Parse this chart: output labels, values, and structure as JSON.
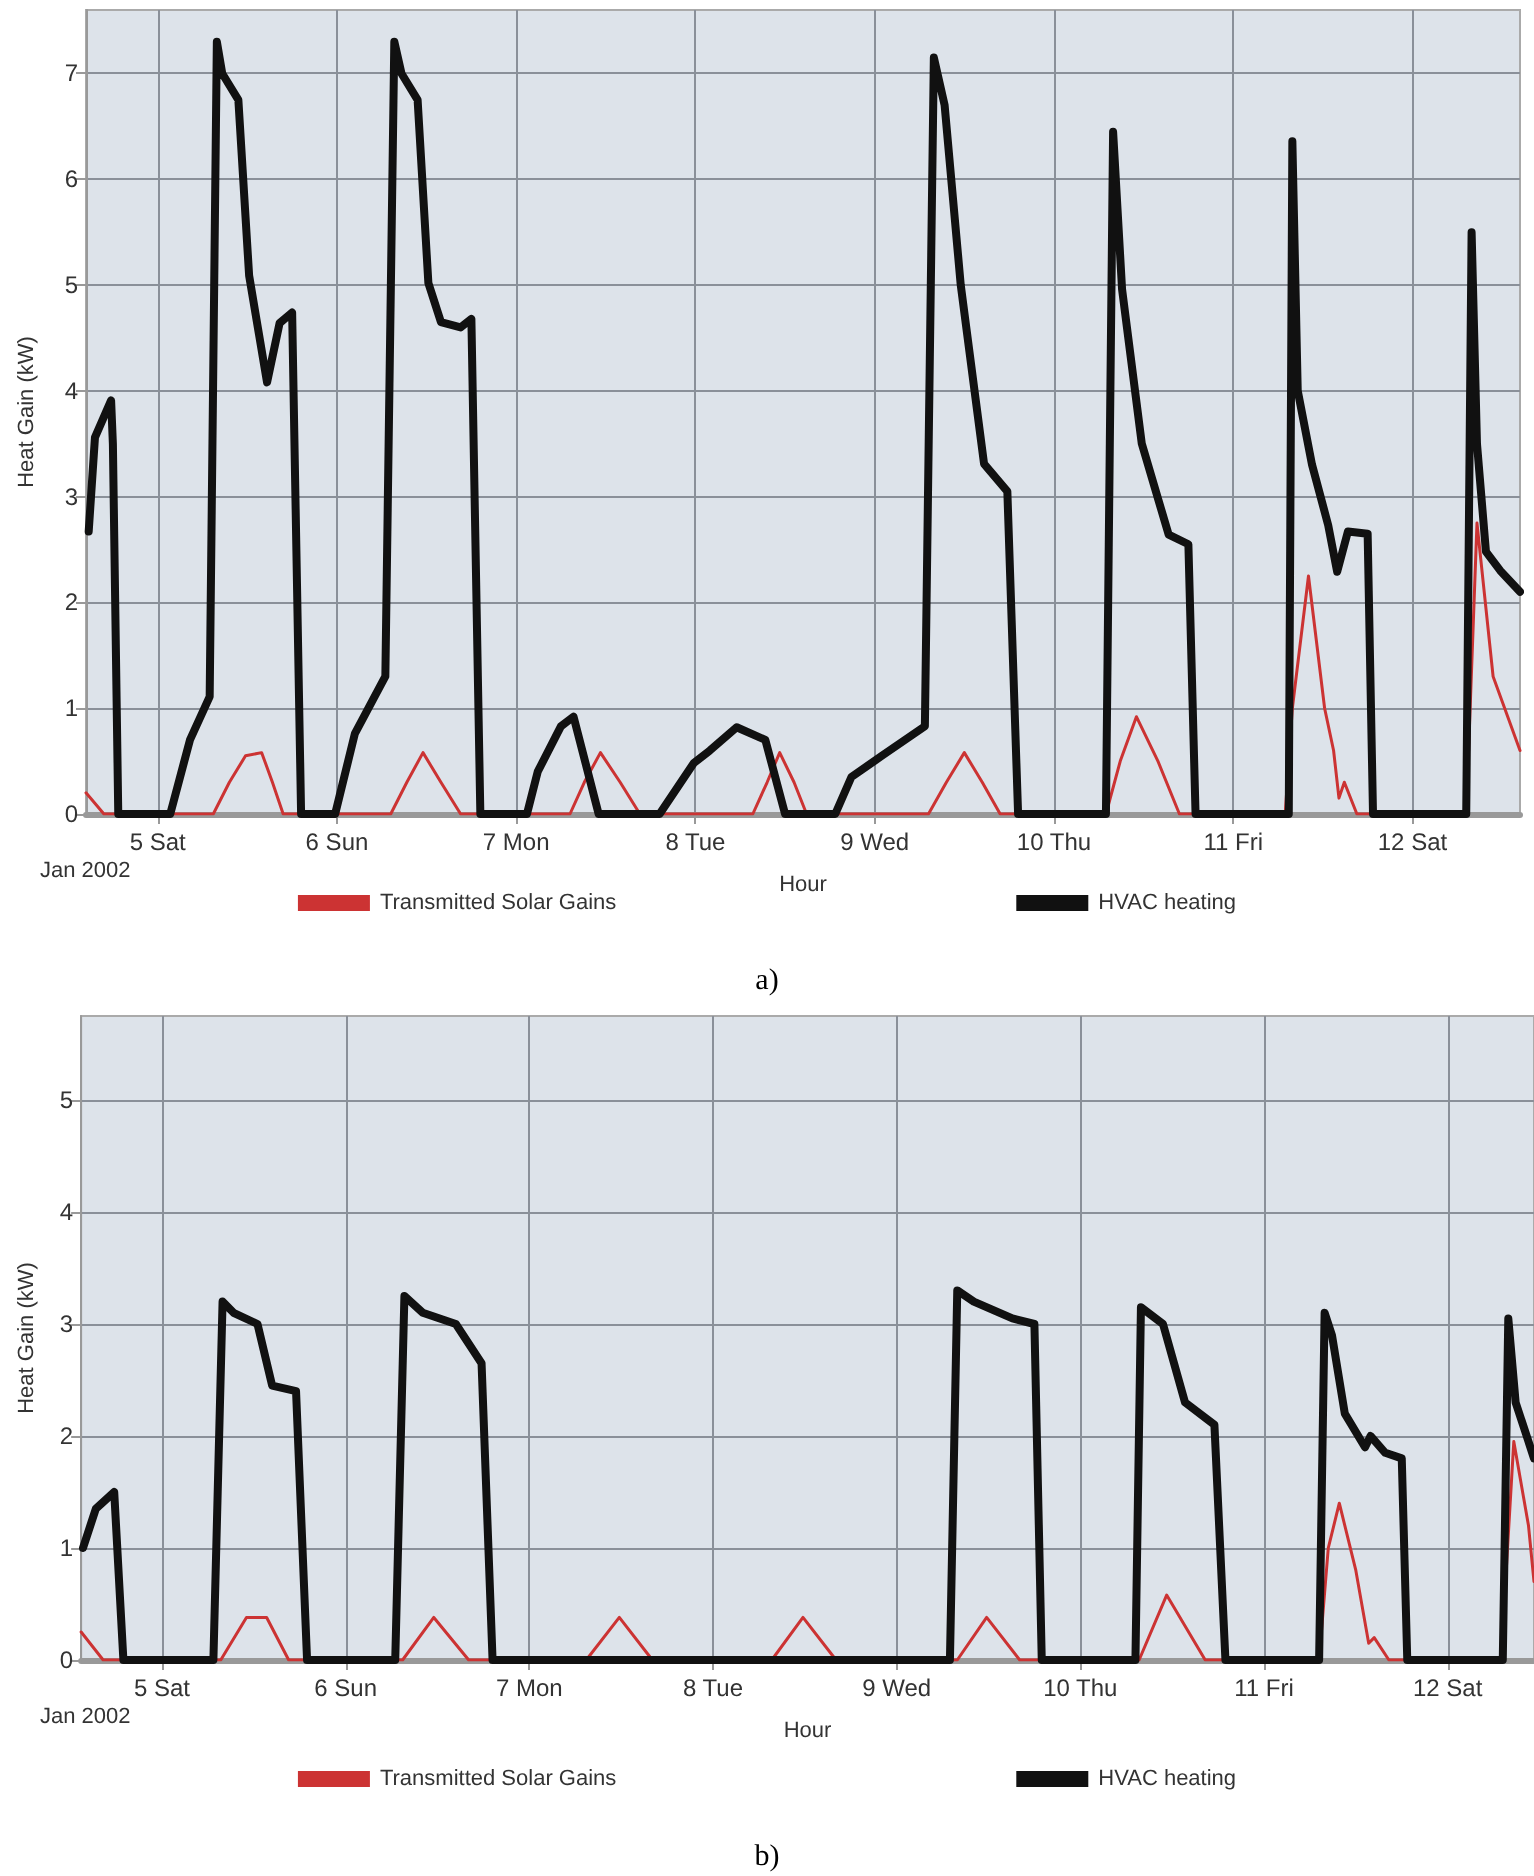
{
  "chart_data": [
    {
      "type": "line",
      "xlabel": "Hour",
      "ylabel": "Heat Gain (kW)",
      "annotations": [
        "Jan 2002",
        "a)"
      ],
      "xlim": [
        4.6,
        12.6
      ],
      "ylim": [
        0,
        7.6
      ],
      "yticks": [
        0,
        1,
        2,
        3,
        4,
        5,
        6,
        7
      ],
      "xticks": [
        {
          "value": 5,
          "label": "5 Sat"
        },
        {
          "value": 6,
          "label": "6 Sun"
        },
        {
          "value": 7,
          "label": "7 Mon"
        },
        {
          "value": 8,
          "label": "8 Tue"
        },
        {
          "value": 9,
          "label": "9 Wed"
        },
        {
          "value": 10,
          "label": "10 Thu"
        },
        {
          "value": 11,
          "label": "11 Fri"
        },
        {
          "value": 12,
          "label": "12 Sat"
        }
      ],
      "grid": true,
      "legend": "bottom",
      "marker": "none",
      "line_style": "solid",
      "series": [
        {
          "name": "Transmitted Solar Gains",
          "color": "#cc3333",
          "x": [
            4.6,
            4.7,
            5.31,
            5.4,
            5.49,
            5.58,
            5.64,
            5.7,
            6.3,
            6.39,
            6.48,
            6.58,
            6.69,
            7.3,
            7.38,
            7.47,
            7.58,
            7.69,
            8.32,
            8.4,
            8.47,
            8.55,
            8.62,
            9.3,
            9.4,
            9.5,
            9.6,
            9.7,
            10.29,
            10.37,
            10.46,
            10.58,
            10.7,
            11.29,
            11.33,
            11.42,
            11.51,
            11.56,
            11.59,
            11.62,
            11.69,
            12.3,
            12.36,
            12.45,
            12.6
          ],
          "values": [
            0.2,
            0,
            0,
            0.3,
            0.55,
            0.58,
            0.3,
            0,
            0,
            0.3,
            0.58,
            0.3,
            0,
            0,
            0.3,
            0.58,
            0.3,
            0,
            0,
            0.3,
            0.58,
            0.3,
            0,
            0,
            0.3,
            0.58,
            0.3,
            0,
            0,
            0.5,
            0.92,
            0.5,
            0,
            0,
            1.0,
            2.25,
            1.0,
            0.6,
            0.15,
            0.3,
            0,
            0,
            2.75,
            1.3,
            0.6
          ]
        },
        {
          "name": "HVAC heating",
          "color": "#111111",
          "x": [
            4.615,
            4.65,
            4.74,
            4.75,
            4.78,
            5.07,
            5.18,
            5.29,
            5.33,
            5.36,
            5.45,
            5.51,
            5.61,
            5.68,
            5.75,
            5.8,
            5.99,
            6.1,
            6.27,
            6.32,
            6.36,
            6.45,
            6.51,
            6.58,
            6.69,
            6.75,
            6.8,
            7.06,
            7.12,
            7.25,
            7.32,
            7.46,
            7.8,
            7.99,
            8.08,
            8.23,
            8.39,
            8.5,
            8.78,
            8.87,
            9.04,
            9.28,
            9.33,
            9.39,
            9.48,
            9.61,
            9.74,
            9.8,
            10.29,
            10.33,
            10.38,
            10.49,
            10.64,
            10.75,
            10.79,
            11.31,
            11.33,
            11.36,
            11.44,
            11.53,
            11.58,
            11.64,
            11.75,
            11.78,
            12.3,
            12.33,
            12.36,
            12.41,
            12.49,
            12.6
          ],
          "values": [
            2.67,
            3.56,
            3.91,
            3.5,
            0,
            0,
            0.7,
            1.11,
            7.3,
            7.0,
            6.75,
            5.09,
            4.08,
            4.64,
            4.74,
            0,
            0,
            0.76,
            1.3,
            7.3,
            7.0,
            6.75,
            5.02,
            4.65,
            4.6,
            4.68,
            0,
            0,
            0.4,
            0.83,
            0.92,
            0,
            0,
            0.48,
            0.6,
            0.82,
            0.7,
            0,
            0,
            0.35,
            0.55,
            0.83,
            7.15,
            6.7,
            5.0,
            3.31,
            3.05,
            0,
            0,
            6.45,
            4.96,
            3.5,
            2.64,
            2.55,
            0,
            0,
            6.36,
            4.0,
            3.3,
            2.73,
            2.29,
            2.67,
            2.65,
            0,
            0,
            5.5,
            3.5,
            2.48,
            2.3,
            2.1
          ]
        }
      ]
    },
    {
      "type": "line",
      "xlabel": "Hour",
      "ylabel": "Heat Gain (kW)",
      "annotations": [
        "Jan 2002",
        "b)"
      ],
      "xlim": [
        4.56,
        12.47
      ],
      "ylim": [
        0,
        5.75
      ],
      "yticks": [
        0,
        1,
        2,
        3,
        4,
        5
      ],
      "xticks": [
        {
          "value": 5,
          "label": "5 Sat"
        },
        {
          "value": 6,
          "label": "6 Sun"
        },
        {
          "value": 7,
          "label": "7 Mon"
        },
        {
          "value": 8,
          "label": "8 Tue"
        },
        {
          "value": 9,
          "label": "9 Wed"
        },
        {
          "value": 10,
          "label": "10 Thu"
        },
        {
          "value": 11,
          "label": "11 Fri"
        },
        {
          "value": 12,
          "label": "12 Sat"
        }
      ],
      "grid": true,
      "legend": "bottom",
      "marker": "none",
      "line_style": "solid",
      "series": [
        {
          "name": "Transmitted Solar Gains",
          "color": "#cc3333",
          "x": [
            4.56,
            4.68,
            5.32,
            5.46,
            5.57,
            5.69,
            6.31,
            6.48,
            6.67,
            7.31,
            7.49,
            7.67,
            8.32,
            8.49,
            8.67,
            9.33,
            9.49,
            9.67,
            10.32,
            10.47,
            10.68,
            11.3,
            11.35,
            11.41,
            11.5,
            11.57,
            11.6,
            11.68,
            12.29,
            12.36,
            12.44,
            12.47
          ],
          "values": [
            0.25,
            0,
            0,
            0.38,
            0.38,
            0,
            0,
            0.38,
            0,
            0,
            0.38,
            0,
            0,
            0.38,
            0,
            0,
            0.38,
            0,
            0,
            0.58,
            0,
            0,
            1.0,
            1.4,
            0.8,
            0.15,
            0.2,
            0,
            0,
            1.95,
            1.2,
            0.7
          ]
        },
        {
          "name": "HVAC heating",
          "color": "#111111",
          "x": [
            4.57,
            4.64,
            4.74,
            4.79,
            5.28,
            5.33,
            5.39,
            5.52,
            5.6,
            5.73,
            5.79,
            6.27,
            6.32,
            6.42,
            6.6,
            6.74,
            6.8,
            9.29,
            9.33,
            9.42,
            9.63,
            9.75,
            9.79,
            10.3,
            10.33,
            10.45,
            10.57,
            10.73,
            10.79,
            11.3,
            11.33,
            11.37,
            11.44,
            11.55,
            11.58,
            11.66,
            11.75,
            11.78,
            12.3,
            12.33,
            12.37,
            12.47
          ],
          "values": [
            1.0,
            1.35,
            1.5,
            0,
            0,
            3.2,
            3.1,
            3.0,
            2.45,
            2.4,
            0,
            0,
            3.25,
            3.1,
            3.0,
            2.65,
            0,
            0,
            3.3,
            3.2,
            3.05,
            3.0,
            0,
            0,
            3.15,
            3.0,
            2.3,
            2.1,
            0,
            0,
            3.1,
            2.9,
            2.2,
            1.9,
            2.0,
            1.85,
            1.8,
            0,
            0,
            3.05,
            2.3,
            1.8
          ]
        }
      ]
    }
  ]
}
